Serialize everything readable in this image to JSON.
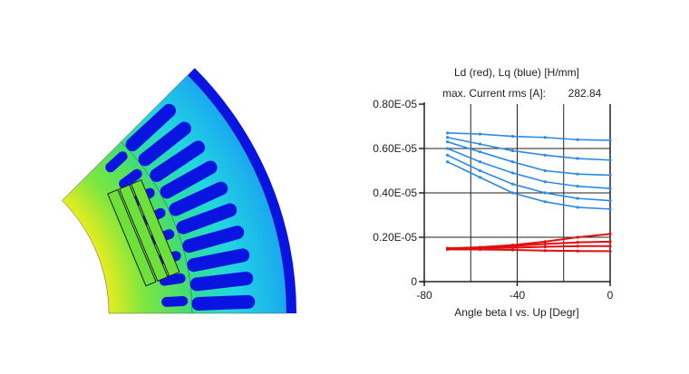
{
  "figure": {
    "image_kind": "motor-cross-section-flux-density-plot",
    "colors": {
      "low": "#0a14e0",
      "mid_low": "#19c8e6",
      "mid": "#3ce65a",
      "high": "#f0f014",
      "peak": "#f03c14"
    }
  },
  "chart_data": {
    "type": "line",
    "title": "Ld (red), Lq (blue) [H/mm]",
    "subtitle_label": "max. Current rms [A]:",
    "subtitle_value": "282.84",
    "xlabel": "Angle beta I vs. Up [Degr]",
    "ylabel": "",
    "xlim": [
      -80,
      0
    ],
    "ylim": [
      0,
      8e-06
    ],
    "xticks": [
      -80,
      -40,
      0
    ],
    "xtick_labels": [
      "-80",
      "-40",
      "0"
    ],
    "yticks": [
      0,
      2e-06,
      4e-06,
      6e-06,
      8e-06
    ],
    "ytick_labels": [
      "0",
      "0.20E-05",
      "0.40E-05",
      "0.60E-05",
      "0.80E-05"
    ],
    "grid": true,
    "x": [
      -70,
      -56,
      -42,
      -28,
      -14,
      0
    ],
    "series": [
      {
        "group": "Lq",
        "color": "#2a8ae8",
        "values": [
          6.7e-06,
          6.65e-06,
          6.55e-06,
          6.5e-06,
          6.4e-06,
          6.37e-06
        ]
      },
      {
        "group": "Lq",
        "color": "#2a8ae8",
        "values": [
          6.5e-06,
          6.2e-06,
          5.9e-06,
          5.7e-06,
          5.55e-06,
          5.48e-06
        ]
      },
      {
        "group": "Lq",
        "color": "#2a8ae8",
        "values": [
          6.3e-06,
          5.85e-06,
          5.4e-06,
          5e-06,
          4.85e-06,
          4.8e-06
        ]
      },
      {
        "group": "Lq",
        "color": "#2a8ae8",
        "values": [
          6e-06,
          5.4e-06,
          4.9e-06,
          4.5e-06,
          4.3e-06,
          4.2e-06
        ]
      },
      {
        "group": "Lq",
        "color": "#2a8ae8",
        "values": [
          5.7e-06,
          5e-06,
          4.4e-06,
          4e-06,
          3.75e-06,
          3.65e-06
        ]
      },
      {
        "group": "Lq",
        "color": "#2a8ae8",
        "values": [
          5.4e-06,
          4.7e-06,
          4e-06,
          3.6e-06,
          3.35e-06,
          3.27e-06
        ]
      },
      {
        "group": "Ld",
        "color": "#e01010",
        "values": [
          1.5e-06,
          1.55e-06,
          1.65e-06,
          1.8e-06,
          2e-06,
          2.15e-06
        ]
      },
      {
        "group": "Ld",
        "color": "#e01010",
        "values": [
          1.5e-06,
          1.53e-06,
          1.6e-06,
          1.7e-06,
          1.77e-06,
          1.8e-06
        ]
      },
      {
        "group": "Ld",
        "color": "#e01010",
        "values": [
          1.48e-06,
          1.5e-06,
          1.53e-06,
          1.57e-06,
          1.6e-06,
          1.6e-06
        ]
      },
      {
        "group": "Ld",
        "color": "#e01010",
        "values": [
          1.45e-06,
          1.45e-06,
          1.43e-06,
          1.4e-06,
          1.38e-06,
          1.37e-06
        ]
      }
    ]
  }
}
